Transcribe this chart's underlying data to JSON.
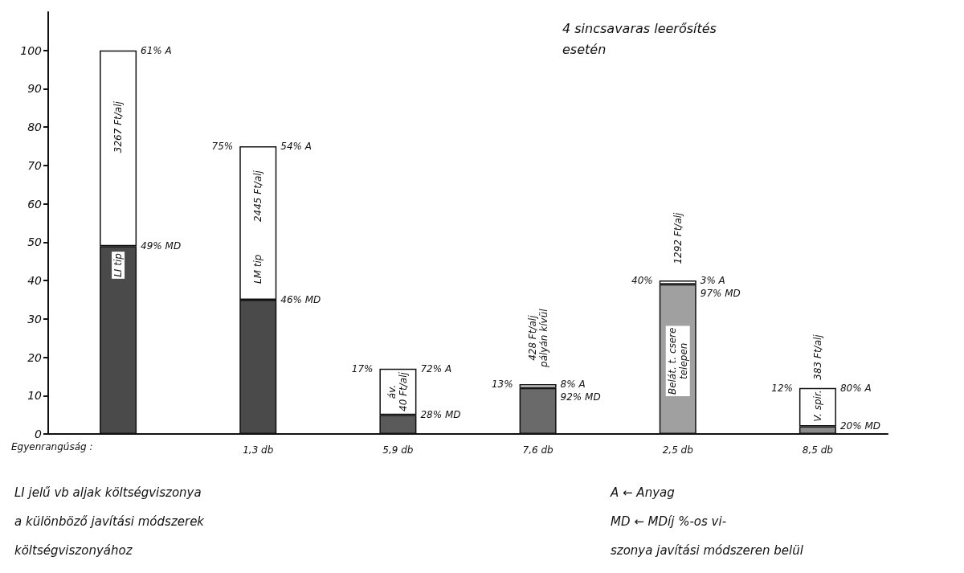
{
  "chart_data": {
    "type": "bar",
    "title": "4 sincsavaras leerősítés\nesetén",
    "xlabel": "Egyenrangúság :",
    "categories": [
      null,
      "1,3 db",
      "5,9 db",
      "7,6 db",
      "2,5 db",
      "8,5 db"
    ],
    "stacked": true,
    "series": [
      {
        "colors": [
          "#4a4a4a",
          "#4a4a4a",
          "#5a5a5a",
          "#6a6a6a",
          "#a0a0a0",
          "#8a8a8a"
        ],
        "values": [
          49,
          35,
          5,
          12,
          39,
          2
        ]
      },
      {
        "color": "#ffffff",
        "values": [
          51,
          40,
          12,
          1,
          1,
          10
        ]
      }
    ],
    "totals": [
      null,
      "75%",
      "17%",
      "13%",
      "40%",
      "12%"
    ],
    "ylim": [
      0,
      110
    ],
    "yticks": [
      0,
      10,
      20,
      30,
      40,
      50,
      60,
      70,
      80,
      90,
      100
    ],
    "grid": false,
    "annotations": [
      "LI jelű vb aljak költségviszonya\na különböző javítási módszerek\nköltségviszonyához",
      "A ← Anyag\nMD ← MDíj %-os vi-\nszonya javítási módszeren belül",
      "3267 Ft/alj",
      "LI tip",
      "2445 Ft/alj",
      "LM tip",
      "áv.\n40 Ft/alj",
      "428 Ft/alj\npályán kívül",
      "1292 Ft/alj",
      "Belát. t. csere\ntelepen",
      "383 Ft/alj",
      "V. spir.",
      "61% A",
      "49% MD",
      {
        "text": "54% A",
        "x": "1,3 db",
        "y": 75
      },
      {
        "text": "46% MD",
        "x": "1,3 db",
        "y": 35
      },
      {
        "text": "72% A",
        "x": "5,9 db",
        "y": 17
      },
      {
        "text": "28% MD",
        "x": "5,9 db",
        "y": 5
      },
      {
        "text": "8% A",
        "x": "7,6 db",
        "y": 13
      },
      {
        "text": "92% MD",
        "x": "7,6 db",
        "y": 12
      },
      {
        "text": "3% A",
        "x": "2,5 db",
        "y": 40
      },
      {
        "text": "97% MD",
        "x": "2,5 db",
        "y": 39
      },
      {
        "text": "80% A",
        "x": "8,5 db",
        "y": 12
      },
      {
        "text": "20% MD",
        "x": "8,5 db",
        "y": 2
      }
    ]
  }
}
